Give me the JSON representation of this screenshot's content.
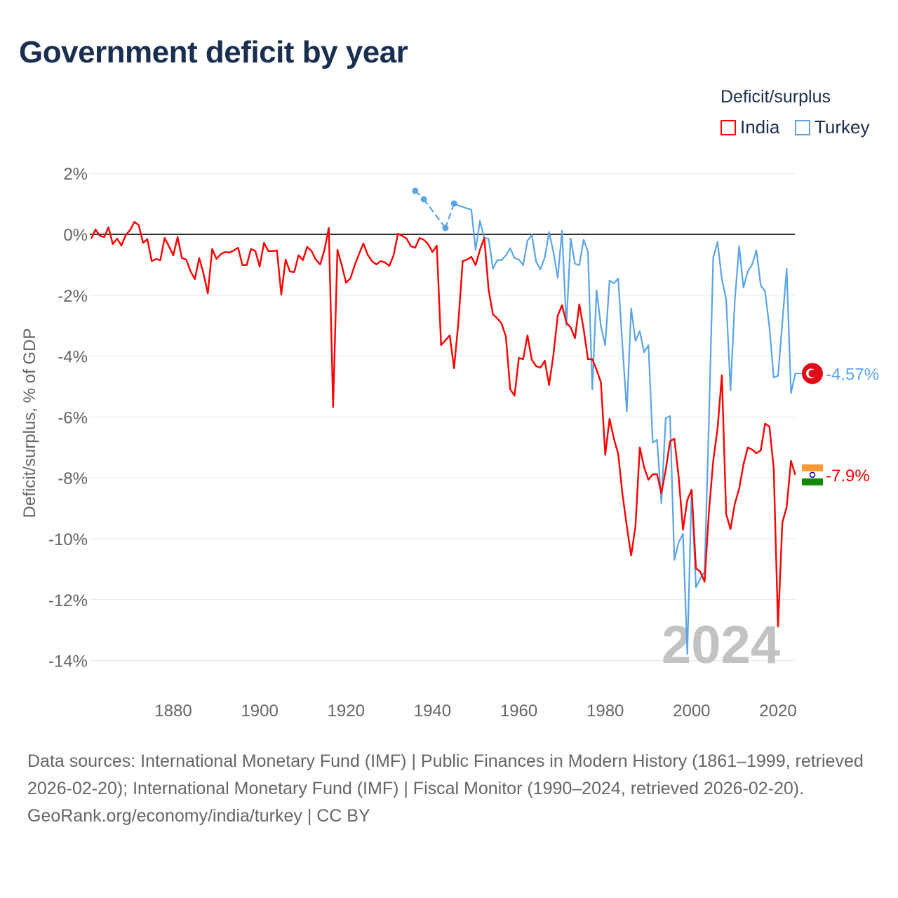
{
  "title": "Government deficit by year",
  "legend": {
    "title": "Deficit/surplus",
    "india": "India",
    "turkey": "Turkey"
  },
  "colors": {
    "india": "#ff0000",
    "turkey": "#5ba4e8"
  },
  "footer": {
    "sources": "Data sources: International Monetary Fund (IMF) | Public Finances in Modern History (1861–1999, retrieved 2026-02-20); International Monetary Fund (IMF) | Fiscal Monitor (1990–2024, retrieved 2026-02-20).",
    "credit": "GeoRank.org/economy/india/turkey | CC BY"
  },
  "chart_data": {
    "type": "line",
    "title": "Government deficit by year",
    "ylabel": "Deficit/surplus, % of GDP",
    "xlim": [
      1861,
      2024
    ],
    "ylim": [
      -14,
      2
    ],
    "yticks": [
      2,
      0,
      -2,
      -4,
      -6,
      -8,
      -10,
      -12,
      -14
    ],
    "ytick_labels": [
      "2%",
      "0%",
      "-2%",
      "-4%",
      "-6%",
      "-8%",
      "-10%",
      "-12%",
      "-14%"
    ],
    "xticks": [
      1880,
      1900,
      1920,
      1940,
      1960,
      1980,
      2000,
      2020
    ],
    "xtick_labels": [
      "1880",
      "1900",
      "1920",
      "1940",
      "1960",
      "1980",
      "2000",
      "2020"
    ],
    "year_label": "2024",
    "series": [
      {
        "name": "India",
        "color": "#ff0000",
        "start_year": 1861,
        "end_label": "-7.9%",
        "values": [
          -0.14,
          0.16,
          -0.05,
          -0.09,
          0.23,
          -0.32,
          -0.14,
          -0.37,
          -0.02,
          0.14,
          0.41,
          0.3,
          -0.28,
          -0.16,
          -0.88,
          -0.81,
          -0.85,
          -0.12,
          -0.39,
          -0.69,
          -0.09,
          -0.78,
          -0.83,
          -1.22,
          -1.47,
          -0.78,
          -1.29,
          -1.94,
          -0.48,
          -0.81,
          -0.65,
          -0.58,
          -0.6,
          -0.53,
          -0.44,
          -1.01,
          -1.01,
          -0.48,
          -0.55,
          -1.06,
          -0.28,
          -0.55,
          -0.55,
          -0.53,
          -1.98,
          -0.83,
          -1.22,
          -1.24,
          -0.69,
          -0.85,
          -0.41,
          -0.55,
          -0.83,
          -0.99,
          -0.51,
          0.21,
          -5.67,
          -0.51,
          -1.01,
          -1.59,
          -1.45,
          -1.01,
          -0.65,
          -0.3,
          -0.67,
          -0.88,
          -0.99,
          -0.88,
          -0.92,
          -1.04,
          -0.69,
          0.02,
          -0.05,
          -0.14,
          -0.39,
          -0.44,
          -0.12,
          -0.18,
          -0.32,
          -0.58,
          -0.37,
          -3.64,
          -3.48,
          -3.32,
          -4.4,
          -2.9,
          -0.88,
          -0.83,
          -0.74,
          -1.01,
          -0.51,
          -0.12,
          -1.82,
          -2.63,
          -2.76,
          -2.93,
          -3.36,
          -5.09,
          -5.3,
          -4.06,
          -4.1,
          -3.32,
          -4.12,
          -4.33,
          -4.38,
          -4.15,
          -4.95,
          -3.96,
          -2.67,
          -2.33,
          -2.9,
          -3.06,
          -3.41,
          -2.3,
          -3.11,
          -4.1,
          -4.1,
          -4.45,
          -4.86,
          -7.24,
          -6.06,
          -6.71,
          -7.21,
          -8.55,
          -9.59,
          -10.55,
          -9.59,
          -7.0,
          -7.65,
          -8.06,
          -7.88,
          -7.88,
          -8.5,
          -7.74,
          -6.8,
          -6.71,
          -7.97,
          -9.7,
          -8.73,
          -8.39,
          -10.97,
          -11.08,
          -11.41,
          -9.12,
          -7.44,
          -6.38,
          -4.63,
          -9.19,
          -9.68,
          -8.85,
          -8.36,
          -7.56,
          -7.0,
          -7.07,
          -7.19,
          -7.1,
          -6.22,
          -6.31,
          -7.67,
          -12.88,
          -9.47,
          -8.96,
          -7.44,
          -7.9
        ]
      },
      {
        "name": "Turkey",
        "color": "#5ba4e8",
        "end_label": "-4.57%",
        "points": [
          [
            1936,
            1.43
          ],
          [
            1938,
            1.15
          ],
          [
            1943,
            0.21
          ],
          [
            1945,
            1.01
          ],
          [
            1946,
            0.95
          ],
          [
            1947,
            0.9
          ],
          [
            1948,
            0.85
          ],
          [
            1949,
            0.81
          ],
          [
            1950,
            -0.51
          ],
          [
            1951,
            0.44
          ],
          [
            1952,
            -0.12
          ],
          [
            1953,
            -0.14
          ],
          [
            1954,
            -1.13
          ],
          [
            1955,
            -0.85
          ],
          [
            1956,
            -0.85
          ],
          [
            1957,
            -0.69
          ],
          [
            1958,
            -0.46
          ],
          [
            1959,
            -0.78
          ],
          [
            1960,
            -0.83
          ],
          [
            1961,
            -1.01
          ],
          [
            1962,
            -0.21
          ],
          [
            1963,
            -0.02
          ],
          [
            1964,
            -0.9
          ],
          [
            1965,
            -1.15
          ],
          [
            1966,
            -0.76
          ],
          [
            1967,
            0.07
          ],
          [
            1968,
            -0.58
          ],
          [
            1969,
            -1.43
          ],
          [
            1970,
            0.12
          ],
          [
            1971,
            -3.0
          ],
          [
            1972,
            -0.14
          ],
          [
            1973,
            -0.97
          ],
          [
            1974,
            -1.01
          ],
          [
            1975,
            -0.18
          ],
          [
            1976,
            -0.58
          ],
          [
            1977,
            -5.09
          ],
          [
            1978,
            -1.84
          ],
          [
            1979,
            -3.02
          ],
          [
            1980,
            -3.64
          ],
          [
            1981,
            -1.52
          ],
          [
            1982,
            -1.61
          ],
          [
            1983,
            -1.45
          ],
          [
            1984,
            -3.69
          ],
          [
            1985,
            -5.81
          ],
          [
            1986,
            -2.44
          ],
          [
            1987,
            -3.5
          ],
          [
            1988,
            -3.18
          ],
          [
            1989,
            -3.87
          ],
          [
            1990,
            -3.64
          ],
          [
            1991,
            -6.84
          ],
          [
            1992,
            -6.75
          ],
          [
            1993,
            -8.82
          ],
          [
            1994,
            -6.04
          ],
          [
            1995,
            -5.97
          ],
          [
            1996,
            -10.69
          ],
          [
            1997,
            -10.12
          ],
          [
            1998,
            -9.84
          ],
          [
            1999,
            -13.78
          ],
          [
            2000,
            -8.39
          ],
          [
            2001,
            -11.59
          ],
          [
            2002,
            -11.31
          ],
          [
            2003,
            -11.08
          ],
          [
            2004,
            -6.13
          ],
          [
            2005,
            -0.76
          ],
          [
            2006,
            -0.25
          ],
          [
            2007,
            -1.47
          ],
          [
            2008,
            -2.14
          ],
          [
            2009,
            -5.12
          ],
          [
            2010,
            -2.17
          ],
          [
            2011,
            -0.39
          ],
          [
            2012,
            -1.75
          ],
          [
            2013,
            -1.22
          ],
          [
            2014,
            -0.99
          ],
          [
            2015,
            -0.53
          ],
          [
            2016,
            -1.68
          ],
          [
            2017,
            -1.87
          ],
          [
            2018,
            -3.04
          ],
          [
            2019,
            -4.7
          ],
          [
            2020,
            -4.65
          ],
          [
            2021,
            -2.9
          ],
          [
            2022,
            -1.13
          ],
          [
            2023,
            -5.21
          ],
          [
            2024,
            -4.57
          ]
        ]
      }
    ]
  }
}
